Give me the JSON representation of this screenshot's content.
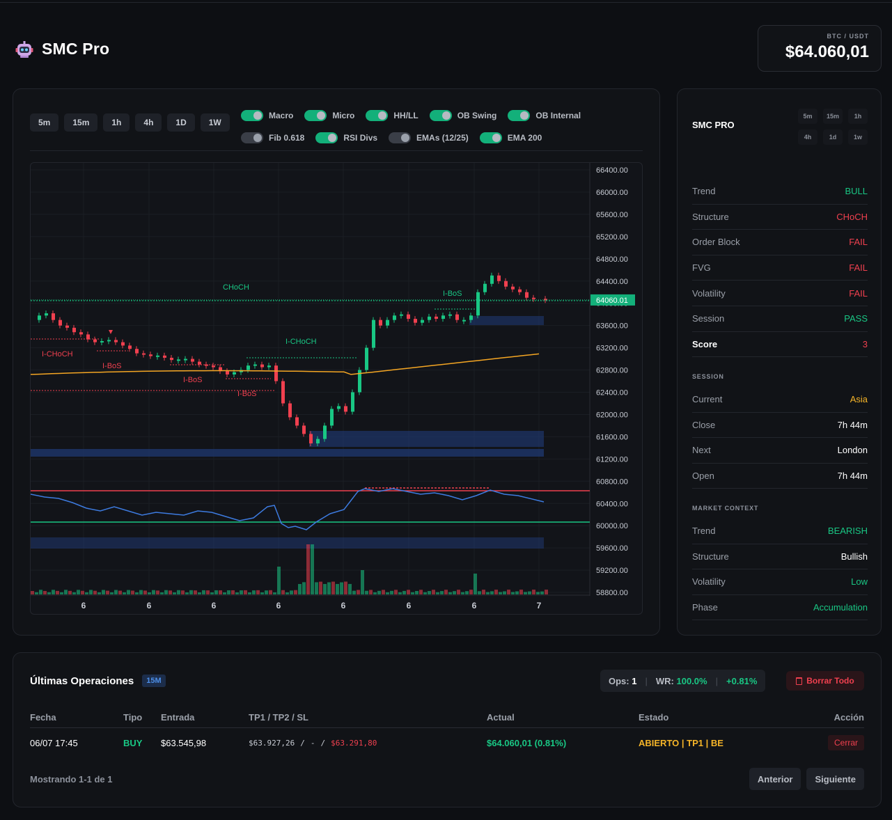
{
  "app": {
    "title": "SMC Pro"
  },
  "ticker": {
    "pair": "BTC / USDT",
    "price": "$64.060,01"
  },
  "toolbar": {
    "timeframes": [
      "5m",
      "15m",
      "1h",
      "4h",
      "1D",
      "1W"
    ],
    "toggles_row1": [
      {
        "label": "Macro",
        "on": true
      },
      {
        "label": "Micro",
        "on": true
      },
      {
        "label": "HH/LL",
        "on": true
      },
      {
        "label": "OB Swing",
        "on": true
      },
      {
        "label": "OB Internal",
        "on": true
      }
    ],
    "toggles_row2": [
      {
        "label": "Fib 0.618",
        "on": false
      },
      {
        "label": "RSI Divs",
        "on": true
      },
      {
        "label": "EMAs (12/25)",
        "on": false
      },
      {
        "label": "EMA 200",
        "on": true
      }
    ]
  },
  "chart_data": {
    "type": "candlestick",
    "price_ticks": [
      "66400.00",
      "66000.00",
      "65600.00",
      "65200.00",
      "64800.00",
      "64400.00",
      "64000.00",
      "63600.00",
      "63200.00",
      "62800.00",
      "62400.00",
      "62000.00",
      "61600.00",
      "61200.00",
      "60800.00",
      "60400.00",
      "60000.00",
      "59600.00",
      "59200.00",
      "58800.00"
    ],
    "last_price_label": "64060.01",
    "last_price": 64060.01,
    "x_labels": [
      "6",
      "6",
      "6",
      "6",
      "6",
      "6",
      "6",
      "7"
    ],
    "annotations": [
      {
        "text": "CHoCH",
        "color": "#19c784"
      },
      {
        "text": "I-BoS",
        "color": "#19c784"
      },
      {
        "text": "I-CHoCH",
        "color": "#19c784"
      },
      {
        "text": "I-CHoCH",
        "color": "#f0404f"
      },
      {
        "text": "I-BoS",
        "color": "#f0404f"
      },
      {
        "text": "I-BoS",
        "color": "#f0404f"
      },
      {
        "text": "I-BoS",
        "color": "#f0404f"
      }
    ],
    "colors": {
      "up": "#19c784",
      "down": "#f0404f",
      "ema200": "#f5a623",
      "rsi": "#3d7be0",
      "zone": "#1f3a78"
    }
  },
  "side": {
    "title": "SMC PRO",
    "mini_tfs": [
      "5m",
      "15m",
      "1h",
      "4h",
      "1d",
      "1w"
    ],
    "metrics": [
      {
        "k": "Trend",
        "v": "BULL",
        "color": "green"
      },
      {
        "k": "Structure",
        "v": "CHoCH",
        "color": "red"
      },
      {
        "k": "Order Block",
        "v": "FAIL",
        "color": "red"
      },
      {
        "k": "FVG",
        "v": "FAIL",
        "color": "red"
      },
      {
        "k": "Volatility",
        "v": "FAIL",
        "color": "red"
      },
      {
        "k": "Session",
        "v": "PASS",
        "color": "green"
      },
      {
        "k": "Score",
        "v": "3",
        "color": "red",
        "strong": true
      }
    ],
    "session_title": "SESSION",
    "session": [
      {
        "k": "Current",
        "v": "Asia",
        "color": "amber"
      },
      {
        "k": "Close",
        "v": "7h 44m",
        "color": "white"
      },
      {
        "k": "Next",
        "v": "London",
        "color": "white"
      },
      {
        "k": "Open",
        "v": "7h 44m",
        "color": "white"
      }
    ],
    "market_title": "MARKET CONTEXT",
    "market": [
      {
        "k": "Trend",
        "v": "BEARISH",
        "color": "green"
      },
      {
        "k": "Structure",
        "v": "Bullish",
        "color": "white"
      },
      {
        "k": "Volatility",
        "v": "Low",
        "color": "green"
      },
      {
        "k": "Phase",
        "v": "Accumulation",
        "color": "green"
      }
    ]
  },
  "ops": {
    "title": "Últimas Operaciones",
    "tf_badge": "15M",
    "stats": {
      "ops_label": "Ops:",
      "ops": "1",
      "wr_label": "WR:",
      "wr": "100.0%",
      "pnl": "+0.81%"
    },
    "clear_label": "Borrar Todo",
    "columns": [
      "Fecha",
      "Tipo",
      "Entrada",
      "TP1 / TP2 / SL",
      "Actual",
      "Estado",
      "Acción"
    ],
    "rows": [
      {
        "fecha": "06/07 17:45",
        "tipo": "BUY",
        "entrada": "$63.545,98",
        "tp1": "$63.927,26",
        "sep1": "/",
        "tp2": "-",
        "sep2": "/",
        "sl": "$63.291,80",
        "actual": "$64.060,01 (0.81%)",
        "estado": "ABIERTO | TP1 | BE",
        "accion": "Cerrar"
      }
    ],
    "showing": "Mostrando 1-1 de 1",
    "prev": "Anterior",
    "next": "Siguiente"
  }
}
